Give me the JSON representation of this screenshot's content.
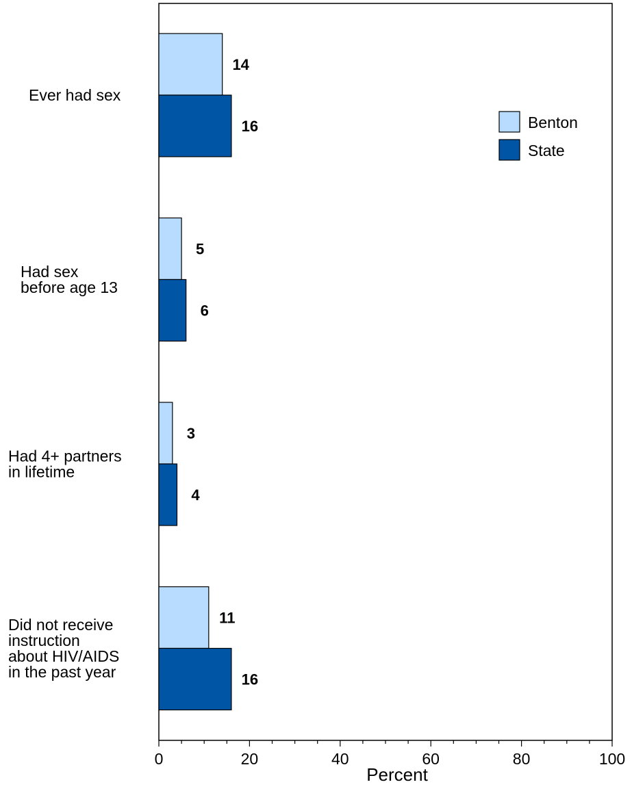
{
  "chart_data": {
    "type": "bar",
    "orientation": "horizontal",
    "categories": [
      [
        "Ever had sex"
      ],
      [
        "Had sex",
        "before age 13"
      ],
      [
        "Had 4+ partners",
        "in lifetime"
      ],
      [
        "Did not receive",
        "instruction",
        "about HIV/AIDS",
        "in the past year"
      ]
    ],
    "series": [
      {
        "name": "Benton",
        "values": [
          14,
          5,
          3,
          11
        ],
        "color": "#b8dcff"
      },
      {
        "name": "State",
        "values": [
          16,
          6,
          4,
          16
        ],
        "color": "#0055a5"
      }
    ],
    "xlabel": "Percent",
    "xlim": [
      0,
      100
    ],
    "xticks": [
      0,
      20,
      40,
      60,
      80,
      100
    ],
    "grid": false,
    "legend_position": "top-right"
  }
}
